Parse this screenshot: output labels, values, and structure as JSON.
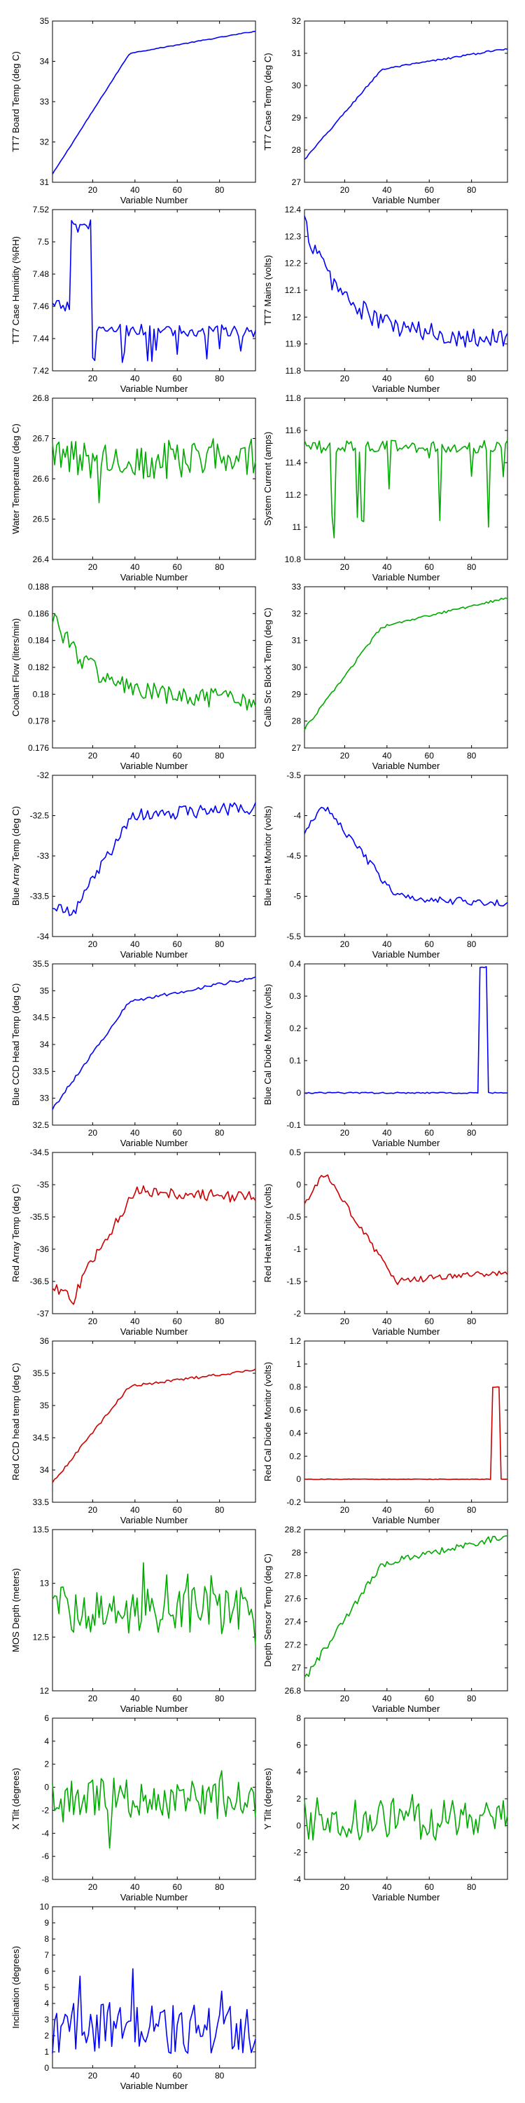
{
  "figure": {
    "xlabel": "Variable Number"
  },
  "chart_data": [
    {
      "type": "line",
      "ylabel": "TT7 Board Temp (deg C)",
      "color": "#0000ff",
      "xlim": [
        1,
        97
      ],
      "ylim": [
        31,
        35
      ],
      "xticks": [
        20,
        40,
        60,
        80
      ],
      "yticks": [
        31,
        32,
        33,
        34,
        35
      ],
      "shape": "ramp",
      "y_start": 31.2,
      "y_mid": 34.2,
      "y_end": 34.75,
      "noise": 0.01
    },
    {
      "type": "line",
      "ylabel": "TT7 Case Temp (deg C)",
      "color": "#0000ff",
      "xlim": [
        1,
        97
      ],
      "ylim": [
        27,
        32
      ],
      "xticks": [
        20,
        40,
        60,
        80
      ],
      "yticks": [
        27,
        28,
        29,
        30,
        31,
        32
      ],
      "shape": "ramp",
      "y_start": 27.7,
      "y_mid": 30.5,
      "y_end": 31.15,
      "noise": 0.03
    },
    {
      "type": "line",
      "ylabel": "TT7 Case Humidity (%RH)",
      "color": "#0000ff",
      "xlim": [
        1,
        97
      ],
      "ylim": [
        7.42,
        7.52
      ],
      "xticks": [
        20,
        40,
        60,
        80
      ],
      "yticks": [
        7.42,
        7.44,
        7.46,
        7.48,
        7.5,
        7.52
      ],
      "shape": "humidity",
      "y_start": 7.46,
      "y_mid": 7.51,
      "y_end": 7.445,
      "noise": 0.004
    },
    {
      "type": "line",
      "ylabel": "TT7 Mains  (volts)",
      "color": "#0000ff",
      "xlim": [
        1,
        97
      ],
      "ylim": [
        11.8,
        12.4
      ],
      "xticks": [
        20,
        40,
        60,
        80
      ],
      "yticks": [
        11.8,
        11.9,
        12,
        12.1,
        12.2,
        12.3,
        12.4
      ],
      "shape": "decay",
      "y_start": 12.35,
      "y_mid": 12.0,
      "y_end": 11.92,
      "noise": 0.04
    },
    {
      "type": "line",
      "ylabel": "Water Temperature (deg C)",
      "color": "#00aa00",
      "xlim": [
        1,
        97
      ],
      "ylim": [
        26.4,
        26.8
      ],
      "xticks": [
        20,
        40,
        60,
        80
      ],
      "yticks": [
        26.4,
        26.5,
        26.6,
        26.7,
        26.8
      ],
      "shape": "noise",
      "y_start": 26.65,
      "y_mid": 26.65,
      "y_end": 26.65,
      "noise": 0.05
    },
    {
      "type": "line",
      "ylabel": "System Current (amps)",
      "color": "#00aa00",
      "xlim": [
        1,
        97
      ],
      "ylim": [
        10.8,
        11.8
      ],
      "xticks": [
        20,
        40,
        60,
        80
      ],
      "yticks": [
        10.8,
        11,
        11.2,
        11.4,
        11.6,
        11.8
      ],
      "shape": "spiky_down",
      "y_start": 11.5,
      "y_mid": 11.5,
      "y_end": 11.6,
      "noise": 0.04
    },
    {
      "type": "line",
      "ylabel": "Coolant Flow (liters/min)",
      "color": "#00aa00",
      "xlim": [
        1,
        97
      ],
      "ylim": [
        0.176,
        0.188
      ],
      "xticks": [
        20,
        40,
        60,
        80
      ],
      "yticks": [
        0.176,
        0.178,
        0.18,
        0.182,
        0.184,
        0.186,
        0.188
      ],
      "shape": "decay",
      "y_start": 0.186,
      "y_mid": 0.18,
      "y_end": 0.1795,
      "noise": 0.0008
    },
    {
      "type": "line",
      "ylabel": "Calib Src Block Temp (deg C)",
      "color": "#00aa00",
      "xlim": [
        1,
        97
      ],
      "ylim": [
        27,
        33
      ],
      "xticks": [
        20,
        40,
        60,
        80
      ],
      "yticks": [
        27,
        28,
        29,
        30,
        31,
        32,
        33
      ],
      "shape": "ramp",
      "y_start": 27.7,
      "y_mid": 31.5,
      "y_end": 32.6,
      "noise": 0.05
    },
    {
      "type": "line",
      "ylabel": "Blue Array Temp (deg C)",
      "color": "#0000ff",
      "xlim": [
        1,
        97
      ],
      "ylim": [
        -34,
        -32
      ],
      "xticks": [
        20,
        40,
        60,
        80
      ],
      "yticks": [
        -34,
        -33.5,
        -33,
        -32.5,
        -32
      ],
      "shape": "dip_ramp",
      "y_start": -33.6,
      "y_mid": -32.5,
      "y_end": -32.4,
      "noise": 0.08
    },
    {
      "type": "line",
      "ylabel": "Blue Heat Monitor (volts)",
      "color": "#0000ff",
      "xlim": [
        1,
        97
      ],
      "ylim": [
        -5.5,
        -3.5
      ],
      "xticks": [
        20,
        40,
        60,
        80
      ],
      "yticks": [
        -5.5,
        -5,
        -4.5,
        -4,
        -3.5
      ],
      "shape": "hump_down",
      "y_start": -4.2,
      "y_mid": -5.0,
      "y_end": -5.1,
      "noise": 0.05
    },
    {
      "type": "line",
      "ylabel": "Blue CCD Head Temp (deg C)",
      "color": "#0000ff",
      "xlim": [
        1,
        97
      ],
      "ylim": [
        32.5,
        35.5
      ],
      "xticks": [
        20,
        40,
        60,
        80
      ],
      "yticks": [
        32.5,
        33,
        33.5,
        34,
        34.5,
        35,
        35.5
      ],
      "shape": "ramp",
      "y_start": 32.8,
      "y_mid": 34.8,
      "y_end": 35.25,
      "noise": 0.03
    },
    {
      "type": "line",
      "ylabel": "Blue Cal Diode Monitor (volts)",
      "color": "#0000ff",
      "xlim": [
        1,
        97
      ],
      "ylim": [
        -0.1,
        0.4
      ],
      "xticks": [
        20,
        40,
        60,
        80
      ],
      "yticks": [
        -0.1,
        0,
        0.1,
        0.2,
        0.3,
        0.4
      ],
      "shape": "pulse",
      "y_start": 0,
      "y_mid": 0.39,
      "y_end": 0,
      "pulse_at": [
        84,
        87
      ],
      "noise": 0.002
    },
    {
      "type": "line",
      "ylabel": "Red Array Temp (deg C)",
      "color": "#cc0000",
      "xlim": [
        1,
        97
      ],
      "ylim": [
        -37,
        -34.5
      ],
      "xticks": [
        20,
        40,
        60,
        80
      ],
      "yticks": [
        -37,
        -36.5,
        -36,
        -35.5,
        -35,
        -34.5
      ],
      "shape": "dip_ramp",
      "y_start": -36.6,
      "y_mid": -35.1,
      "y_end": -35.2,
      "noise": 0.09
    },
    {
      "type": "line",
      "ylabel": "Red Heat Monitor (volts)",
      "color": "#cc0000",
      "xlim": [
        1,
        97
      ],
      "ylim": [
        -2,
        0.5
      ],
      "xticks": [
        20,
        40,
        60,
        80
      ],
      "yticks": [
        -2,
        -1.5,
        -1,
        -0.5,
        0,
        0.5
      ],
      "shape": "hump_down",
      "y_start": -0.3,
      "y_mid": -1.5,
      "y_end": -1.35,
      "noise": 0.05
    },
    {
      "type": "line",
      "ylabel": "Red CCD head temp (deg C)",
      "color": "#cc0000",
      "xlim": [
        1,
        97
      ],
      "ylim": [
        33.5,
        36
      ],
      "xticks": [
        20,
        40,
        60,
        80
      ],
      "yticks": [
        33.5,
        34,
        34.5,
        35,
        35.5,
        36
      ],
      "shape": "ramp",
      "y_start": 33.8,
      "y_mid": 35.3,
      "y_end": 35.55,
      "noise": 0.02
    },
    {
      "type": "line",
      "ylabel": "Red Cal Diode Monitor (volts)",
      "color": "#cc0000",
      "xlim": [
        1,
        97
      ],
      "ylim": [
        -0.2,
        1.2
      ],
      "xticks": [
        20,
        40,
        60,
        80
      ],
      "yticks": [
        -0.2,
        0,
        0.2,
        0.4,
        0.6,
        0.8,
        1,
        1.2
      ],
      "shape": "pulse",
      "y_start": 0,
      "y_mid": 0.8,
      "y_end": 0,
      "pulse_at": [
        90,
        93
      ],
      "noise": 0.002
    },
    {
      "type": "line",
      "ylabel": "MOS Depth  (meters)",
      "color": "#00aa00",
      "xlim": [
        1,
        97
      ],
      "ylim": [
        12,
        13.5
      ],
      "xticks": [
        20,
        40,
        60,
        80
      ],
      "yticks": [
        12,
        12.5,
        13,
        13.5
      ],
      "shape": "noise",
      "y_start": 12.75,
      "y_mid": 12.75,
      "y_end": 12.75,
      "noise": 0.22
    },
    {
      "type": "line",
      "ylabel": "Depth Sensor Temp (deg C)",
      "color": "#00aa00",
      "xlim": [
        1,
        97
      ],
      "ylim": [
        26.8,
        28.2
      ],
      "xticks": [
        20,
        40,
        60,
        80
      ],
      "yticks": [
        26.8,
        27,
        27.2,
        27.4,
        27.6,
        27.8,
        28,
        28.2
      ],
      "shape": "ramp",
      "y_start": 26.9,
      "y_mid": 27.9,
      "y_end": 28.15,
      "noise": 0.03
    },
    {
      "type": "line",
      "ylabel": "X Tilt  (degrees)",
      "color": "#00aa00",
      "xlim": [
        1,
        97
      ],
      "ylim": [
        -8,
        6
      ],
      "xticks": [
        20,
        40,
        60,
        80
      ],
      "yticks": [
        -8,
        -6,
        -4,
        -2,
        0,
        2,
        4,
        6
      ],
      "shape": "noise",
      "y_start": -1,
      "y_mid": -1,
      "y_end": -1,
      "noise": 1.8
    },
    {
      "type": "line",
      "ylabel": "Y Tilt  (degrees)",
      "color": "#00aa00",
      "xlim": [
        1,
        97
      ],
      "ylim": [
        -4,
        8
      ],
      "xticks": [
        20,
        40,
        60,
        80
      ],
      "yticks": [
        -4,
        -2,
        0,
        2,
        4,
        6,
        8
      ],
      "shape": "noise",
      "y_start": 0.5,
      "y_mid": 0.5,
      "y_end": 0.5,
      "noise": 1.6
    },
    {
      "type": "line",
      "ylabel": "Inclination  (degrees)",
      "color": "#0000ff",
      "xlim": [
        1,
        97
      ],
      "ylim": [
        0,
        10
      ],
      "xticks": [
        20,
        40,
        60,
        80
      ],
      "yticks": [
        0,
        1,
        2,
        3,
        4,
        5,
        6,
        7,
        8,
        9,
        10
      ],
      "shape": "positive_noise",
      "y_start": 2.5,
      "y_mid": 2.5,
      "y_end": 2.5,
      "noise": 1.6
    }
  ]
}
